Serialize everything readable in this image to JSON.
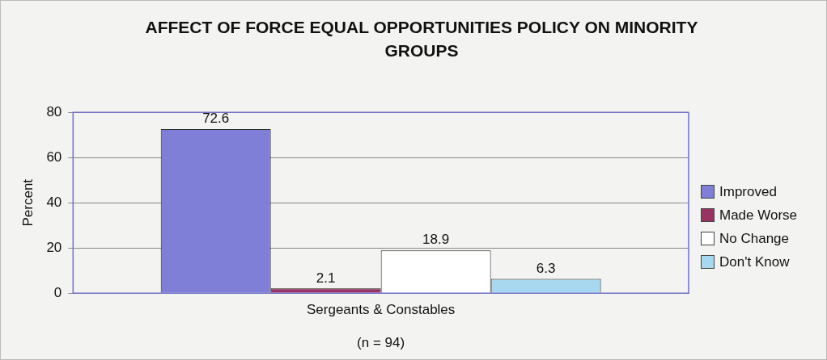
{
  "chart_data": {
    "type": "bar",
    "title": "AFFECT OF FORCE EQUAL OPPORTUNITIES POLICY ON MINORITY GROUPS",
    "ylabel": "Percent",
    "xlabel": "(n = 94)",
    "categories": [
      "Sergeants & Constables"
    ],
    "series": [
      {
        "name": "Improved",
        "color": "#7f7fd8",
        "values": [
          72.6
        ]
      },
      {
        "name": "Made Worse",
        "color": "#993366",
        "values": [
          2.1
        ]
      },
      {
        "name": "No Change",
        "color": "#ffffff",
        "values": [
          18.9
        ]
      },
      {
        "name": "Don't Know",
        "color": "#a8d8f0",
        "values": [
          6.3
        ]
      }
    ],
    "ylim": [
      0,
      80
    ],
    "yticks": [
      0,
      20,
      40,
      60,
      80
    ],
    "grid": "y",
    "legend": "right",
    "data_labels": true
  }
}
